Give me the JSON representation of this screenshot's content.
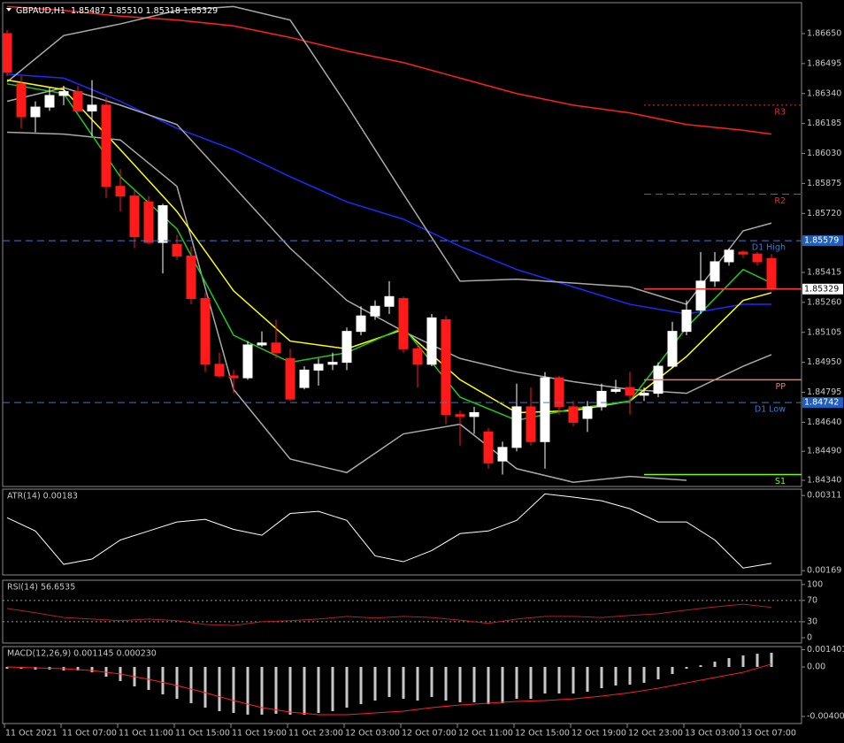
{
  "chart_data": [
    {
      "type": "candlestick",
      "title": "GBPAUD,H1",
      "subtitle": "1.85487 1.85510 1.85318 1.85329",
      "categories": [
        "11 Oct 2021",
        null,
        null,
        null,
        "11 Oct 07:00",
        null,
        null,
        null,
        "11 Oct 11:00",
        null,
        null,
        null,
        "11 Oct 15:00",
        null,
        null,
        null,
        "11 Oct 19:00",
        null,
        null,
        null,
        "11 Oct 23:00",
        null,
        null,
        null,
        "12 Oct 03:00",
        null,
        null,
        null,
        "12 Oct 07:00",
        null,
        null,
        null,
        "12 Oct 11:00",
        null,
        null,
        null,
        "12 Oct 15:00",
        null,
        null,
        null,
        "12 Oct 19:00",
        null,
        null,
        null,
        "12 Oct 23:00",
        null,
        null,
        null,
        "13 Oct 03:00",
        null,
        null,
        null,
        "13 Oct 07:00",
        null,
        null
      ],
      "open": [
        1.8665,
        1.8639,
        1.8622,
        1.8627,
        1.8633,
        1.8635,
        1.8625,
        1.8628,
        1.8586,
        1.8581,
        1.8578,
        1.8557,
        1.8556,
        1.855,
        1.8528,
        1.8494,
        1.8488,
        1.8487,
        1.8504,
        1.8505,
        1.8497,
        1.8482,
        1.8491,
        1.8494,
        1.8495,
        1.8511,
        1.8519,
        1.8524,
        1.8528,
        1.8502,
        1.8494,
        1.8517,
        1.8468,
        1.8467,
        1.8459,
        1.8444,
        1.8451,
        1.8472,
        1.8454,
        1.8487,
        1.8472,
        1.8466,
        1.8472,
        1.848,
        1.8482,
        1.8478,
        1.8479,
        1.8493,
        1.8511,
        1.8522,
        1.8537,
        1.8547,
        1.8552,
        1.8551,
        1.85487
      ],
      "high": [
        1.8667,
        1.8643,
        1.863,
        1.8637,
        1.8638,
        1.8638,
        1.8641,
        1.8632,
        1.8595,
        1.8584,
        1.8581,
        1.8577,
        1.8561,
        1.8555,
        1.8531,
        1.85,
        1.8491,
        1.8506,
        1.8511,
        1.8517,
        1.8502,
        1.8493,
        1.8497,
        1.85,
        1.8513,
        1.8524,
        1.8527,
        1.8537,
        1.8529,
        1.8504,
        1.852,
        1.8519,
        1.847,
        1.8472,
        1.8461,
        1.8454,
        1.8484,
        1.8482,
        1.849,
        1.8488,
        1.8475,
        1.8475,
        1.8484,
        1.8486,
        1.849,
        1.8482,
        1.8495,
        1.8516,
        1.8527,
        1.8552,
        1.8552,
        1.8554,
        1.8553,
        1.8552,
        1.8551
      ],
      "low": [
        1.8643,
        1.8616,
        1.8614,
        1.8625,
        1.8628,
        1.8624,
        1.8612,
        1.858,
        1.8573,
        1.8554,
        1.8556,
        1.8541,
        1.8548,
        1.8525,
        1.849,
        1.8487,
        1.8479,
        1.8486,
        1.8503,
        1.8497,
        1.8475,
        1.8481,
        1.8483,
        1.8491,
        1.8491,
        1.8509,
        1.8517,
        1.852,
        1.85,
        1.8482,
        1.8493,
        1.8463,
        1.8452,
        1.8458,
        1.844,
        1.8437,
        1.8449,
        1.8452,
        1.844,
        1.8468,
        1.8462,
        1.8459,
        1.847,
        1.8479,
        1.8468,
        1.8475,
        1.8477,
        1.8492,
        1.8509,
        1.852,
        1.8534,
        1.8545,
        1.8549,
        1.8545,
        1.85318
      ],
      "close": [
        1.8645,
        1.8622,
        1.8627,
        1.8633,
        1.8635,
        1.8625,
        1.8628,
        1.8586,
        1.8581,
        1.856,
        1.8557,
        1.8576,
        1.855,
        1.8528,
        1.8494,
        1.8488,
        1.8487,
        1.8504,
        1.8505,
        1.85,
        1.8476,
        1.8491,
        1.8494,
        1.8495,
        1.8511,
        1.8519,
        1.8524,
        1.8529,
        1.8502,
        1.8494,
        1.8518,
        1.8468,
        1.8467,
        1.8469,
        1.8443,
        1.8451,
        1.8472,
        1.8454,
        1.8487,
        1.8472,
        1.8464,
        1.8472,
        1.848,
        1.8481,
        1.8478,
        1.8479,
        1.8493,
        1.8511,
        1.8522,
        1.8537,
        1.8547,
        1.8553,
        1.8551,
        1.8547,
        1.85329
      ],
      "up_color": "#ffffff",
      "down_color": "#ff1a1a",
      "ylim": [
        1.84308,
        1.8681
      ],
      "yticks": [
        {
          "value": 1.8665,
          "label": "1.86650"
        },
        1.86495,
        {
          "value": 1.8634,
          "label": "1.86340"
        },
        1.86185,
        {
          "value": 1.8603,
          "label": "1.86030"
        },
        1.85875,
        {
          "value": 1.8572,
          "label": "1.85720"
        },
        1.85415,
        {
          "value": 1.8526,
          "label": "1.85260"
        },
        1.85105,
        {
          "value": 1.8495,
          "label": "1.84950"
        },
        1.84795,
        {
          "value": 1.8464,
          "label": "1.84640"
        },
        {
          "value": 1.8449,
          "label": "1.84490"
        },
        {
          "value": 1.8434,
          "label": "1.84340"
        }
      ],
      "overlays": [
        {
          "color": "#ff2020",
          "x": [
            0,
            4,
            8,
            12,
            16,
            20,
            24,
            28,
            32,
            36,
            40,
            44,
            48,
            52,
            54
          ],
          "values": [
            1.8679,
            1.8677,
            1.8674,
            1.8672,
            1.8669,
            1.8663,
            1.8656,
            1.865,
            1.8642,
            1.8634,
            1.8628,
            1.8624,
            1.8618,
            1.8615,
            1.8613
          ]
        },
        {
          "color": "#1a2cff",
          "x": [
            0,
            4,
            8,
            12,
            16,
            20,
            24,
            28,
            32,
            36,
            40,
            44,
            48,
            52,
            54
          ],
          "values": [
            1.8644,
            1.8642,
            1.863,
            1.8616,
            1.8605,
            1.8591,
            1.8578,
            1.8569,
            1.8555,
            1.8543,
            1.8534,
            1.8525,
            1.852,
            1.8525,
            1.8525
          ]
        },
        {
          "color": "#a9a9a9",
          "x": [
            0,
            4,
            8,
            12,
            16,
            20,
            24,
            28,
            32,
            36,
            40,
            44,
            48,
            52,
            54
          ],
          "values": [
            1.864,
            1.8664,
            1.867,
            1.8677,
            1.8679,
            1.8672,
            1.8628,
            1.8582,
            1.8537,
            1.8538,
            1.8536,
            1.8534,
            1.8525,
            1.8563,
            1.8567
          ]
        },
        {
          "color": "#a9a9a9",
          "x": [
            0,
            4,
            8,
            12,
            16,
            20,
            24,
            28,
            32,
            36,
            40,
            44,
            48,
            52,
            54
          ],
          "values": [
            1.863,
            1.8637,
            1.8628,
            1.8618,
            1.8586,
            1.8554,
            1.8527,
            1.8511,
            1.8497,
            1.849,
            1.8485,
            1.8481,
            1.8479,
            1.8493,
            1.8499
          ]
        },
        {
          "color": "#a9a9a9",
          "x": [
            0,
            4,
            8,
            12,
            16,
            20,
            24,
            28,
            32,
            36,
            40,
            44,
            48
          ],
          "values": [
            1.8614,
            1.8613,
            1.861,
            1.8586,
            1.8481,
            1.8445,
            1.8438,
            1.8458,
            1.8463,
            1.844,
            1.8433,
            1.8436,
            1.8434
          ]
        },
        {
          "color": "#ffff00",
          "x": [
            0,
            4,
            8,
            12,
            16,
            20,
            24,
            28,
            32,
            36,
            40,
            44,
            48,
            52,
            54
          ],
          "values": [
            1.8641,
            1.8636,
            1.8605,
            1.8573,
            1.8532,
            1.8506,
            1.8502,
            1.8512,
            1.8486,
            1.8469,
            1.847,
            1.8475,
            1.8498,
            1.8527,
            1.8531
          ]
        },
        {
          "color": "#1ec81e",
          "x": [
            0,
            4,
            8,
            12,
            16,
            20,
            24,
            28,
            32,
            36,
            40,
            44,
            48,
            52,
            54
          ],
          "values": [
            1.8639,
            1.8634,
            1.8591,
            1.8564,
            1.8509,
            1.8495,
            1.85,
            1.8513,
            1.8477,
            1.8465,
            1.8471,
            1.8475,
            1.8513,
            1.8543,
            1.8536
          ]
        }
      ],
      "levels": [
        {
          "label": "R3",
          "value": 1.8628,
          "color": "#e03030",
          "style": "dotted"
        },
        {
          "label": "R2",
          "value": 1.8582,
          "color": "#e03030",
          "style": "dashed"
        },
        {
          "label": "D1 High",
          "value": 1.85579,
          "color": "#3a7bd5",
          "style": "dashed",
          "full_width": true
        },
        {
          "label": "PP",
          "value": 1.8486,
          "color": "#f07a5a",
          "style": "solid"
        },
        {
          "label": "D1 Low",
          "value": 1.84742,
          "color": "#3a7bd5",
          "style": "dashed",
          "full_width": true
        },
        {
          "label": "S1",
          "value": 1.8437,
          "color": "#7cfc00",
          "style": "solid"
        }
      ],
      "last_price": 1.85329,
      "last_price_color": "#ff3b3b"
    },
    {
      "type": "line",
      "title": "ATR(14) 0.00183",
      "color": "#ffffff",
      "x": [
        0,
        2,
        4,
        6,
        8,
        10,
        12,
        14,
        16,
        18,
        20,
        22,
        24,
        26,
        28,
        30,
        32,
        34,
        36,
        38,
        40,
        42,
        44,
        46,
        48,
        50,
        52,
        54
      ],
      "values": [
        0.00269,
        0.00244,
        0.00181,
        0.00191,
        0.00227,
        0.00244,
        0.00261,
        0.00266,
        0.00247,
        0.00236,
        0.00277,
        0.00281,
        0.00264,
        0.00197,
        0.00186,
        0.00207,
        0.00239,
        0.00244,
        0.00264,
        0.00314,
        0.00308,
        0.00301,
        0.00286,
        0.00261,
        0.00261,
        0.00227,
        0.00174,
        0.00183
      ],
      "ylim": [
        0.00161,
        0.00323
      ],
      "yticks": [
        0.00311,
        0.00169
      ]
    },
    {
      "type": "line",
      "title": "RSI(14) 56.6535",
      "color": "#b22222",
      "x": [
        0,
        2,
        4,
        6,
        8,
        10,
        12,
        14,
        16,
        18,
        20,
        22,
        24,
        26,
        28,
        30,
        32,
        34,
        36,
        38,
        40,
        42,
        44,
        46,
        48,
        50,
        52,
        54
      ],
      "values": [
        55,
        47,
        38,
        35,
        32,
        35,
        32,
        25,
        23,
        30,
        32,
        35,
        40,
        37,
        40,
        38,
        33,
        27,
        35,
        40,
        40,
        38,
        42,
        45,
        52,
        58,
        63,
        57
      ],
      "ylim": [
        -10,
        108
      ],
      "yticks": [
        100,
        70,
        30,
        0
      ],
      "levels": [
        70,
        30
      ]
    },
    {
      "type": "bar",
      "title": "MACD(12,26,9) 0.001145 0.000230",
      "color": "#c8c8c8",
      "values": [
        -0.00014,
        -0.00014,
        -0.00021,
        -0.00021,
        -0.00029,
        -0.00029,
        -0.00043,
        -0.00079,
        -0.00114,
        -0.00157,
        -0.00186,
        -0.00222,
        -0.00258,
        -0.00293,
        -0.00329,
        -0.00358,
        -0.00372,
        -0.00386,
        -0.00386,
        -0.00379,
        -0.00386,
        -0.00386,
        -0.00372,
        -0.00358,
        -0.00329,
        -0.00301,
        -0.00272,
        -0.00243,
        -0.00258,
        -0.00272,
        -0.00243,
        -0.00272,
        -0.00286,
        -0.00286,
        -0.00301,
        -0.00293,
        -0.00258,
        -0.00258,
        -0.00215,
        -0.00215,
        -0.00215,
        -0.002,
        -0.00172,
        -0.0015,
        -0.00143,
        -0.00129,
        -0.001,
        -0.00057,
        -0.00014,
        0.00014,
        0.00043,
        0.00072,
        0.00093,
        0.00107,
        0.001145
      ],
      "line": {
        "color": "#ff2020",
        "x": [
          0,
          2,
          4,
          6,
          8,
          10,
          12,
          14,
          16,
          18,
          20,
          22,
          24,
          26,
          28,
          30,
          32,
          34,
          36,
          38,
          40,
          42,
          44,
          46,
          48,
          50,
          52,
          54
        ],
        "values": [
          0,
          -7e-05,
          -0.00014,
          -0.00029,
          -0.00057,
          -0.001,
          -0.0015,
          -0.00208,
          -0.00272,
          -0.00329,
          -0.00365,
          -0.00386,
          -0.00386,
          -0.00372,
          -0.00358,
          -0.00329,
          -0.00308,
          -0.00293,
          -0.00279,
          -0.00272,
          -0.00258,
          -0.00236,
          -0.00208,
          -0.00172,
          -0.00129,
          -0.00086,
          -0.00043,
          0.00023
        ]
      },
      "ylim": [
        -0.00458,
        0.00165
      ],
      "yticks": [
        0.001401,
        {
          "value": 0,
          "label": "0.00"
        },
        -0.004007
      ]
    }
  ]
}
